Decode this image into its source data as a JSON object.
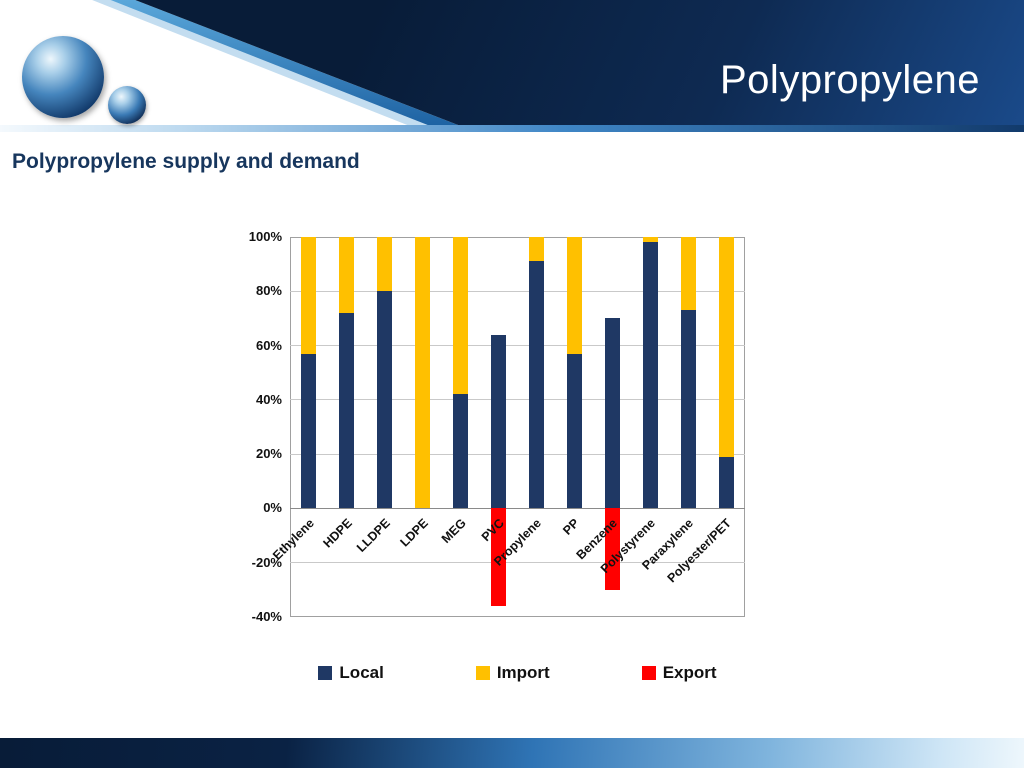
{
  "header": {
    "title": "Polypropylene"
  },
  "subtitle": "Polypropylene supply and demand",
  "colors": {
    "local": "#1F3864",
    "import": "#FFC000",
    "export": "#FF0000",
    "banner": "#081c38"
  },
  "chart_data": {
    "type": "bar",
    "stacked": true,
    "title": "",
    "xlabel": "",
    "ylabel": "",
    "categories": [
      "Ethylene",
      "HDPE",
      "LLDPE",
      "LDPE",
      "MEG",
      "PVC",
      "Propylene",
      "PP",
      "Benzene",
      "Polystyrene",
      "Paraxylene",
      "Polyester/PET"
    ],
    "series": [
      {
        "name": "Local",
        "color": "#1F3864",
        "values": [
          57,
          72,
          80,
          0,
          42,
          64,
          91,
          57,
          70,
          98,
          73,
          19
        ]
      },
      {
        "name": "Import",
        "color": "#FFC000",
        "values": [
          43,
          28,
          20,
          100,
          58,
          0,
          9,
          43,
          0,
          2,
          27,
          81
        ]
      },
      {
        "name": "Export",
        "color": "#FF0000",
        "values": [
          0,
          0,
          0,
          0,
          0,
          -36,
          0,
          0,
          -30,
          0,
          0,
          0
        ]
      }
    ],
    "ylim": [
      -40,
      100
    ],
    "ytick_step": 20,
    "ytick_labels": [
      "100%",
      "80%",
      "60%",
      "40%",
      "20%",
      "0%",
      "-20%",
      "-40%"
    ],
    "grid": true,
    "legend_position": "bottom",
    "legend_labels": [
      "Local",
      "Import",
      "Export"
    ]
  }
}
